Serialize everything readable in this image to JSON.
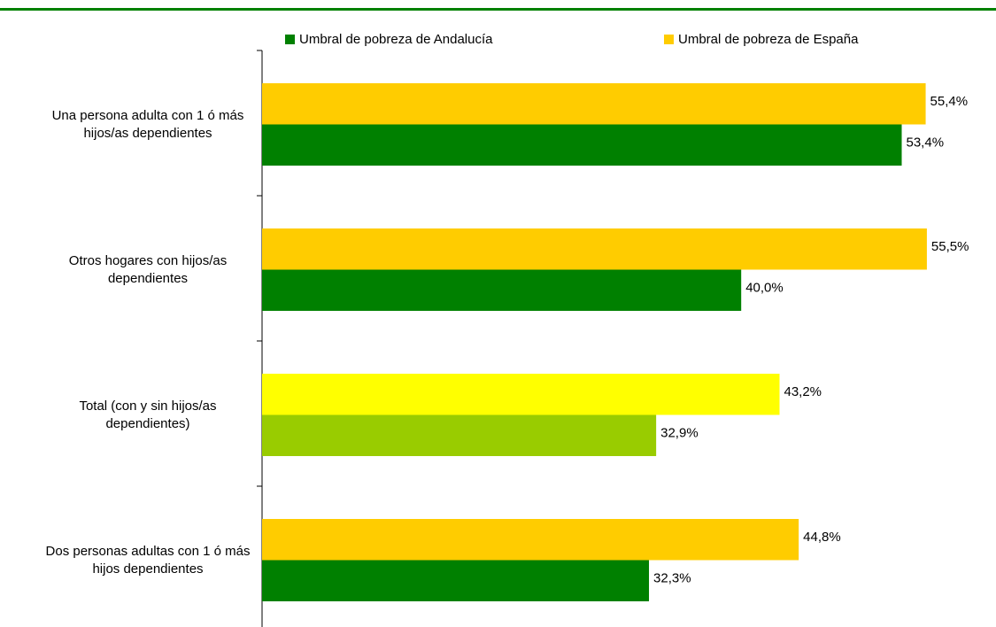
{
  "chart_data": {
    "type": "barh",
    "categories": [
      "Una persona adulta con 1 ó más hijos/as dependientes",
      "Otros hogares con hijos/as dependientes",
      "Total (con y sin hijos/as dependientes)",
      "Dos personas adultas con 1 ó más hijos dependientes"
    ],
    "series": [
      {
        "name": "Umbral de pobreza de España",
        "color": "#ffcc00",
        "colors": [
          "#ffcc00",
          "#ffcc00",
          "#ffff00",
          "#ffcc00"
        ],
        "values": [
          55.4,
          55.5,
          43.2,
          44.8
        ],
        "value_labels": [
          "55,4%",
          "55,5%",
          "43,2%",
          "44,8%"
        ]
      },
      {
        "name": "Umbral de pobreza de Andalucía",
        "color": "#008000",
        "colors": [
          "#008000",
          "#008000",
          "#99cc00",
          "#008000"
        ],
        "values": [
          53.4,
          40.0,
          32.9,
          32.3
        ],
        "value_labels": [
          "53,4%",
          "40,0%",
          "32,9%",
          "32,3%"
        ]
      }
    ]
  }
}
